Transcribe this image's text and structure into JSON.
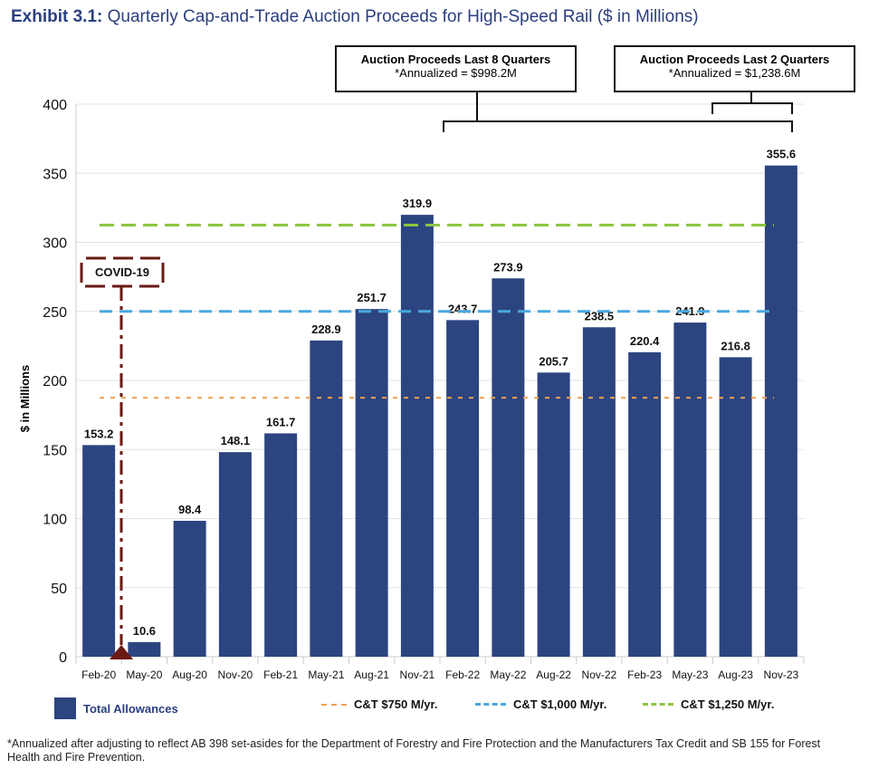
{
  "title": {
    "prefix": "Exhibit 3.1:",
    "text": "Quarterly Cap-and-Trade Auction Proceeds for High-Speed Rail ($ in Millions)"
  },
  "callouts": [
    {
      "title": "Auction Proceeds Last 8 Quarters",
      "value": "*Annualized = $998.2M"
    },
    {
      "title": "Auction Proceeds Last 2 Quarters",
      "value": "*Annualized = $1,238.6M"
    }
  ],
  "covid_label": "COVID-19",
  "legend": {
    "bars": "Total Allowances",
    "lines": [
      "C&T $750 M/yr.",
      "C&T $1,000 M/yr.",
      "C&T $1,250 M/yr."
    ]
  },
  "footnote": "*Annualized after adjusting to reflect AB 398 set-asides for the Department of Forestry and Fire Protection and the Manufacturers Tax Credit and SB 155 for Forest Health and Fire Prevention.",
  "colors": {
    "bar": "#2c4580",
    "orange": "#f0a050",
    "blue": "#4aa8e0",
    "green": "#8cc63f",
    "covid": "#6b1a14",
    "title": "#2b3f80"
  },
  "chart_data": {
    "type": "bar",
    "title": "Quarterly Cap-and-Trade Auction Proceeds for High-Speed Rail ($ in Millions)",
    "xlabel": "",
    "ylabel": "$ in Millions",
    "ylim": [
      0,
      400
    ],
    "yticks": [
      0,
      50,
      100,
      150,
      200,
      250,
      300,
      350,
      400
    ],
    "grid": true,
    "legend_position": "bottom",
    "categories": [
      "Feb-20",
      "May-20",
      "Aug-20",
      "Nov-20",
      "Feb-21",
      "May-21",
      "Aug-21",
      "Nov-21",
      "Feb-22",
      "May-22",
      "Aug-22",
      "Nov-22",
      "Feb-23",
      "May-23",
      "Aug-23",
      "Nov-23"
    ],
    "series": [
      {
        "name": "Total Allowances",
        "values": [
          153.2,
          10.6,
          98.4,
          148.1,
          161.7,
          228.9,
          251.7,
          319.9,
          243.7,
          273.9,
          205.7,
          238.5,
          220.4,
          241.9,
          216.8,
          355.6
        ]
      }
    ],
    "reference_lines": [
      {
        "name": "C&T $750 M/yr.",
        "value": 187.5,
        "color": "#f0a050"
      },
      {
        "name": "C&T $1,000 M/yr.",
        "value": 250,
        "color": "#4aa8e0"
      },
      {
        "name": "C&T $1,250 M/yr.",
        "value": 312.5,
        "color": "#8cc63f"
      }
    ]
  }
}
